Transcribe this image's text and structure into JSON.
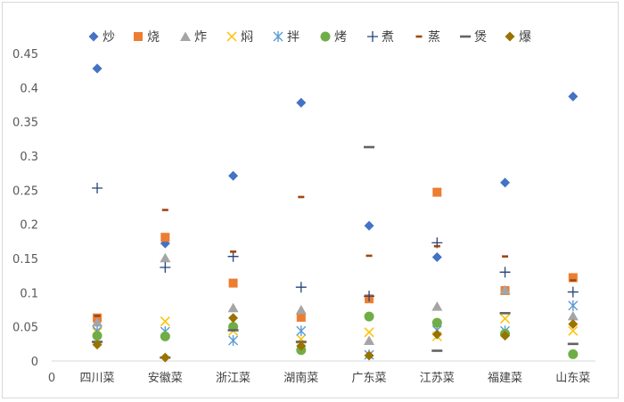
{
  "chart_data": {
    "type": "scatter",
    "categories": [
      "四川菜",
      "安徽菜",
      "浙江菜",
      "湖南菜",
      "广东菜",
      "江苏菜",
      "福建菜",
      "山东菜"
    ],
    "ylim": [
      0,
      0.45
    ],
    "yticks": [
      "0",
      "0.05",
      "0.1",
      "0.15",
      "0.2",
      "0.25",
      "0.3",
      "0.35",
      "0.4",
      "0.45"
    ],
    "x_origin_label": "0",
    "grid": false,
    "legend": "top",
    "series": [
      {
        "name": "炒",
        "marker": "diamond",
        "color": "#4472C4",
        "values": [
          0.428,
          0.172,
          0.271,
          0.378,
          0.198,
          0.152,
          0.261,
          0.387
        ]
      },
      {
        "name": "烧",
        "marker": "square",
        "color": "#ED7D31",
        "values": [
          0.063,
          0.181,
          0.114,
          0.064,
          0.091,
          0.247,
          0.103,
          0.122
        ]
      },
      {
        "name": "炸",
        "marker": "triangle",
        "color": "#A5A5A5",
        "values": [
          0.057,
          0.151,
          0.078,
          0.075,
          0.03,
          0.08,
          0.104,
          0.066
        ]
      },
      {
        "name": "焖",
        "marker": "x",
        "color": "#FFC000",
        "values": [
          0.042,
          0.058,
          0.044,
          0.032,
          0.042,
          0.036,
          0.062,
          0.044
        ]
      },
      {
        "name": "拌",
        "marker": "asterisk",
        "color": "#5B9BD5",
        "values": [
          0.044,
          0.043,
          0.03,
          0.044,
          0.009,
          0.045,
          0.044,
          0.081
        ]
      },
      {
        "name": "烤",
        "marker": "circle",
        "color": "#70AD47",
        "values": [
          0.037,
          0.036,
          0.05,
          0.016,
          0.065,
          0.056,
          0.04,
          0.01
        ]
      },
      {
        "name": "煮",
        "marker": "plus",
        "color": "#264478",
        "values": [
          0.253,
          0.137,
          0.153,
          0.108,
          0.095,
          0.173,
          0.13,
          0.101
        ]
      },
      {
        "name": "蒸",
        "marker": "short-dash",
        "color": "#9E480E",
        "values": [
          0.066,
          0.221,
          0.16,
          0.24,
          0.154,
          0.168,
          0.153,
          0.118
        ]
      },
      {
        "name": "煲",
        "marker": "long-dash",
        "color": "#636363",
        "values": [
          0.028,
          0.005,
          0.045,
          0.028,
          0.313,
          0.015,
          0.07,
          0.025
        ]
      },
      {
        "name": "爆",
        "marker": "diamond",
        "color": "#997300",
        "values": [
          0.024,
          0.005,
          0.063,
          0.022,
          0.008,
          0.039,
          0.037,
          0.054
        ]
      }
    ]
  }
}
